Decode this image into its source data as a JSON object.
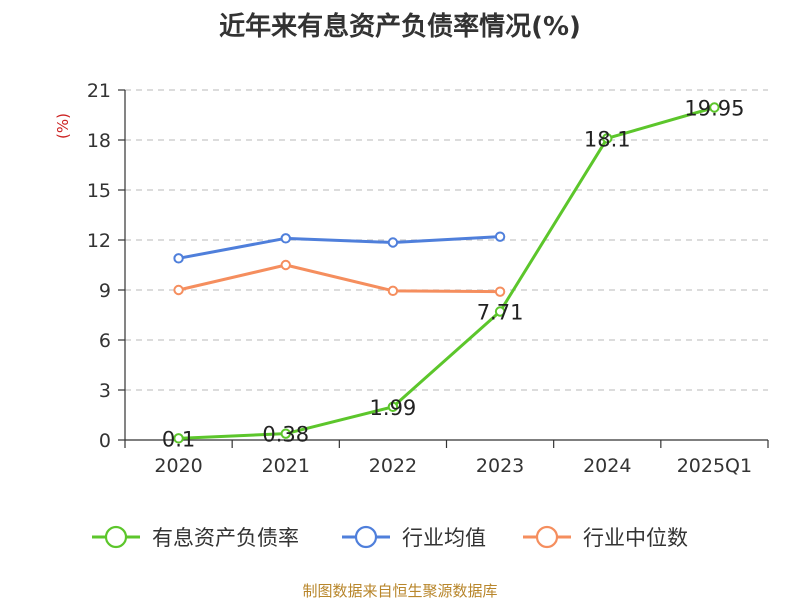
{
  "chart_data": {
    "type": "line",
    "title": "近年来有息资产负债率情况(%)",
    "ylabel": "(%)",
    "xlabel": "",
    "categories": [
      "2020",
      "2021",
      "2022",
      "2023",
      "2024",
      "2025Q1"
    ],
    "ylim": [
      0,
      21
    ],
    "yticks": [
      0,
      3,
      6,
      9,
      12,
      15,
      18,
      21
    ],
    "grid": true,
    "legend_position": "bottom",
    "series": [
      {
        "name": "有息资产负债率",
        "color": "#5cc62b",
        "values": [
          0.1,
          0.38,
          1.99,
          7.71,
          18.1,
          19.95
        ],
        "labels": [
          "0.1",
          "0.38",
          "1.99",
          "7.71",
          "18.1",
          "19.95"
        ]
      },
      {
        "name": "行业均值",
        "color": "#4f7fdb",
        "values": [
          10.9,
          12.1,
          11.85,
          12.2,
          null,
          null
        ]
      },
      {
        "name": "行业中位数",
        "color": "#f58e5e",
        "values": [
          9.0,
          10.5,
          8.95,
          8.9,
          null,
          null
        ]
      }
    ]
  },
  "source": "制图数据来自恒生聚源数据库"
}
